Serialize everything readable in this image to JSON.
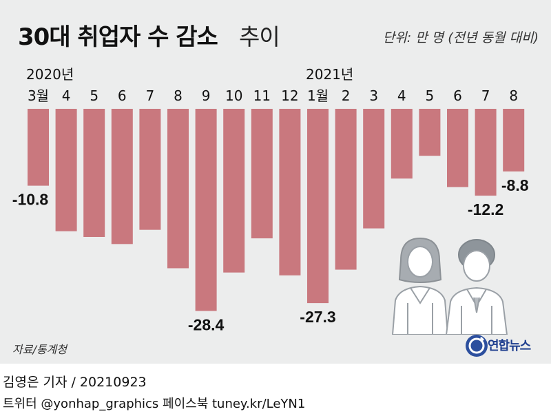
{
  "title": "30대 취업자 수 감소",
  "title_suffix": "추이",
  "unit": "단위: 만 명 (전년 동월 대비)",
  "source": "자료/통계청",
  "logo": "연합뉴스",
  "byline": "김영은 기자 / 20210923",
  "social": "트위터 @yonhap_graphics  페이스북 tuney.kr/LeYN1",
  "chart_data": {
    "type": "bar",
    "year_labels": [
      {
        "label": "2020년",
        "index": 0
      },
      {
        "label": "2021년",
        "index": 10
      }
    ],
    "categories": [
      "3월",
      "4",
      "5",
      "6",
      "7",
      "8",
      "9",
      "10",
      "11",
      "12",
      "1월",
      "2",
      "3",
      "4",
      "5",
      "6",
      "7",
      "8"
    ],
    "values": [
      -10.8,
      -17.2,
      -18.0,
      -19.0,
      -17.0,
      -22.4,
      -28.4,
      -23.0,
      -18.2,
      -23.4,
      -27.3,
      -22.6,
      -16.8,
      -9.8,
      -6.6,
      -11.0,
      -12.2,
      -8.8
    ],
    "data_labels": {
      "0": "-10.8",
      "6": "-28.4",
      "10": "-27.3",
      "16": "-12.2",
      "17": "-8.8"
    },
    "ylim": [
      -30,
      0
    ],
    "bar_color": "#c9787e"
  }
}
